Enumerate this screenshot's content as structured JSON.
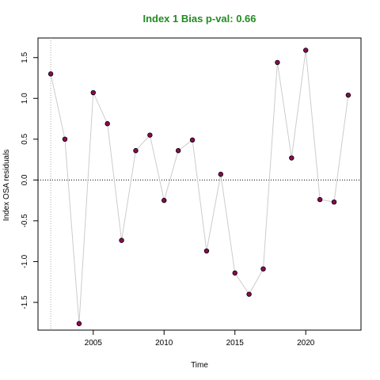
{
  "chart_data": {
    "type": "scatter",
    "title": "Index 1 Bias p-val: 0.66",
    "title_color": "#228B22",
    "xlabel": "Time",
    "ylabel": "Index OSA residuals",
    "xlim": [
      2001.1,
      2023.9
    ],
    "ylim": [
      -1.84,
      1.74
    ],
    "x_ticks": [
      "2005",
      "2010",
      "2015",
      "2020"
    ],
    "y_ticks": [
      "-1.5",
      "-1.0",
      "-0.5",
      "0.0",
      "0.5",
      "1.0",
      "1.5"
    ],
    "x": [
      2002,
      2003,
      2004,
      2005,
      2006,
      2007,
      2008,
      2009,
      2010,
      2011,
      2012,
      2013,
      2014,
      2015,
      2016,
      2017,
      2018,
      2019,
      2020,
      2021,
      2022,
      2023
    ],
    "y": [
      1.3,
      0.5,
      -1.76,
      1.07,
      0.69,
      -0.74,
      0.36,
      0.55,
      -0.25,
      0.36,
      0.49,
      -0.87,
      0.07,
      -1.14,
      -1.4,
      -1.09,
      1.44,
      0.27,
      1.59,
      -0.24,
      -0.27,
      1.04
    ],
    "reference_line_y": 0,
    "reference_line_x": 2002,
    "point_fill": "#8B0A50",
    "line_color": "#cccccc",
    "grid": false,
    "legend": "none"
  }
}
